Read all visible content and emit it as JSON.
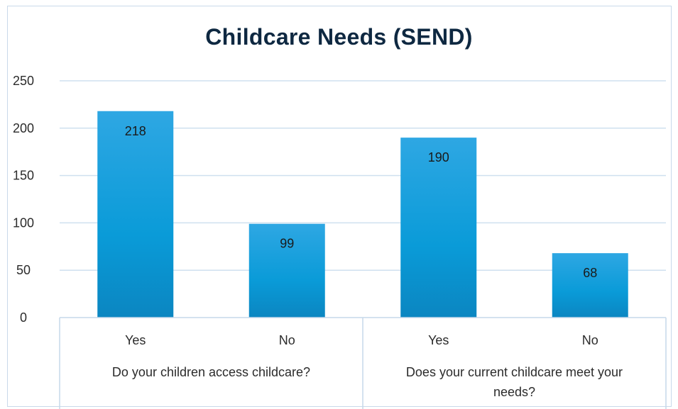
{
  "chart_data": {
    "type": "bar",
    "title": "Childcare Needs (SEND)",
    "xlabel": "",
    "ylabel": "",
    "ylim": [
      0,
      250
    ],
    "yticks": [
      0,
      50,
      100,
      150,
      200,
      250
    ],
    "grid": true,
    "legend": "none",
    "bar_color": "#1796d4",
    "groups": [
      {
        "label": "Do your children access childcare?",
        "categories": [
          "Yes",
          "No"
        ],
        "values": [
          218,
          99
        ]
      },
      {
        "label_lines": [
          "Does your current childcare meet your",
          "needs?"
        ],
        "categories": [
          "Yes",
          "No"
        ],
        "values": [
          190,
          68
        ]
      }
    ]
  }
}
